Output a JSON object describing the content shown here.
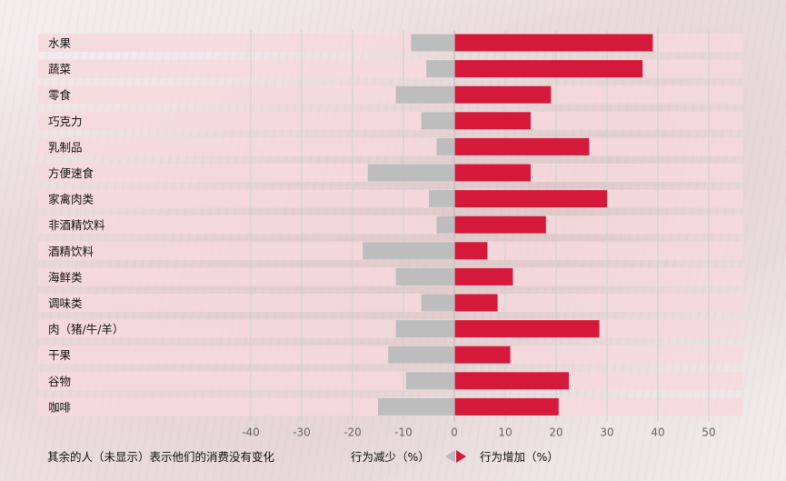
{
  "chart_data": {
    "type": "bar",
    "orientation": "horizontal",
    "categories": [
      "水果",
      "蔬菜",
      "零食",
      "巧克力",
      "乳制品",
      "方便速食",
      "家禽肉类",
      "非酒精饮料",
      "酒精饮料",
      "海鲜类",
      "调味类",
      "肉（猪/牛/羊）",
      "干果",
      "谷物",
      "咖啡"
    ],
    "series": [
      {
        "values": [
          -8.5,
          -5.5,
          -11.5,
          -6.5,
          -3.5,
          -17.0,
          -5.0,
          -3.5,
          -18.0,
          -11.5,
          -6.5,
          -11.5,
          -13.0,
          -9.5,
          -15.0
        ]
      },
      {
        "values": [
          39,
          37,
          19,
          15,
          26.5,
          15,
          30,
          18,
          6.5,
          11.5,
          8.5,
          28.5,
          11,
          22.5,
          20.5
        ]
      }
    ],
    "xlim": [
      -40,
      55
    ],
    "xticks": [
      -40,
      -30,
      -20,
      -10,
      0,
      10,
      20,
      30,
      40,
      50
    ],
    "grid": true,
    "colors": {
      "decrease": "#bdbdbd",
      "increase": "#d4193a",
      "band": "#f6d9dd"
    }
  },
  "footer": {
    "note": "其余的人（未显示）表示他们的消费没有变化",
    "legend_decrease": "行为减少（%）",
    "legend_increase": "行为增加（%）"
  }
}
